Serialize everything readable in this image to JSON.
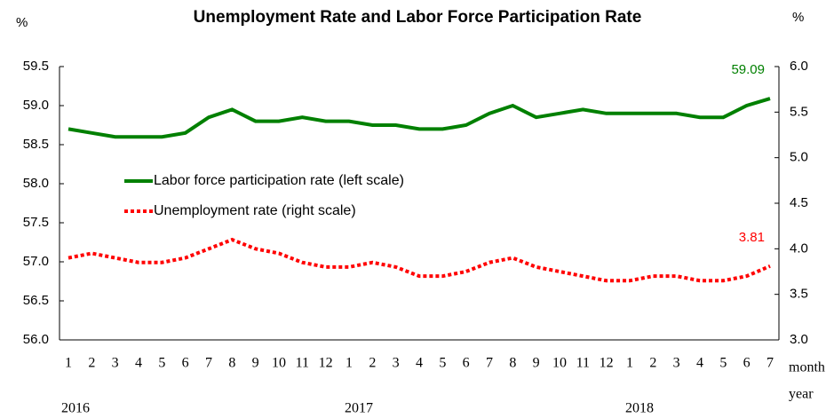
{
  "chart_data": {
    "type": "line",
    "title": "Unemployment Rate and Labor Force Participation Rate",
    "y_unit": "%",
    "y2_unit": "%",
    "x_label": "month",
    "x_group_label": "year",
    "categories": [
      "1",
      "2",
      "3",
      "4",
      "5",
      "6",
      "7",
      "8",
      "9",
      "10",
      "11",
      "12",
      "1",
      "2",
      "3",
      "4",
      "5",
      "6",
      "7",
      "8",
      "9",
      "10",
      "11",
      "12",
      "1",
      "2",
      "3",
      "4",
      "5",
      "6",
      "7"
    ],
    "years": [
      "2016",
      "2017",
      "2018"
    ],
    "series": [
      {
        "name": "Labor force participation rate (left scale)",
        "color": "#008000",
        "axis": "y",
        "values": [
          58.7,
          58.65,
          58.6,
          58.6,
          58.6,
          58.65,
          58.85,
          58.95,
          58.8,
          58.8,
          58.85,
          58.8,
          58.8,
          58.75,
          58.75,
          58.7,
          58.7,
          58.75,
          58.9,
          59.0,
          58.85,
          58.9,
          58.95,
          58.9,
          58.9,
          58.9,
          58.9,
          58.85,
          58.85,
          59.0,
          59.09
        ]
      },
      {
        "name": "Unemployment rate (right scale)",
        "color": "#ff0000",
        "axis": "y2",
        "values": [
          3.9,
          3.95,
          3.9,
          3.85,
          3.85,
          3.9,
          4.0,
          4.1,
          4.0,
          3.95,
          3.85,
          3.8,
          3.8,
          3.85,
          3.8,
          3.7,
          3.7,
          3.75,
          3.85,
          3.9,
          3.8,
          3.75,
          3.7,
          3.65,
          3.65,
          3.7,
          3.7,
          3.65,
          3.65,
          3.7,
          3.81
        ]
      }
    ],
    "ylim": [
      56,
      59.5
    ],
    "yticks": [
      {
        "value": 56,
        "label": "56.0"
      },
      {
        "value": 56.5,
        "label": "56.5"
      },
      {
        "value": 57,
        "label": "57.0"
      },
      {
        "value": 57.5,
        "label": "57.5"
      },
      {
        "value": 58,
        "label": "58.0"
      },
      {
        "value": 58.5,
        "label": "58.5"
      },
      {
        "value": 59,
        "label": "59.0"
      },
      {
        "value": 59.5,
        "label": "59.5"
      }
    ],
    "y2lim": [
      3,
      6
    ],
    "y2ticks": [
      {
        "value": 3,
        "label": "3.0"
      },
      {
        "value": 3.5,
        "label": "3.5"
      },
      {
        "value": 4,
        "label": "4.0"
      },
      {
        "value": 4.5,
        "label": "4.5"
      },
      {
        "value": 5,
        "label": "5.0"
      },
      {
        "value": 5.5,
        "label": "5.5"
      },
      {
        "value": 6,
        "label": "6.0"
      }
    ],
    "grid": false
  }
}
